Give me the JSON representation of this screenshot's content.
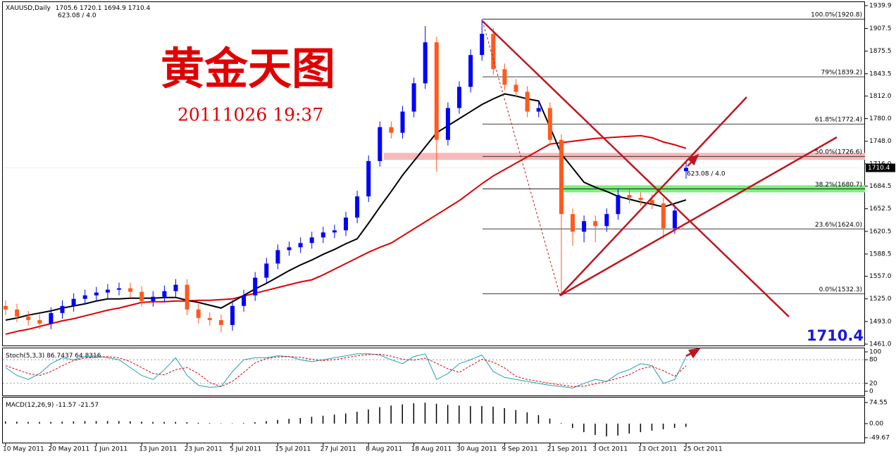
{
  "chart_data": [
    {
      "type": "candlestick",
      "title": "XAUUSD,Daily",
      "annotation": "623.08 / 4.0",
      "overlay_title": "黄金天图",
      "overlay_subtitle": "20111026 19:37",
      "up_color": "#0000ff",
      "down_color": "#ff5a1f",
      "categories": [
        "10 May 2011",
        null,
        null,
        null,
        "20 May 2011",
        null,
        null,
        null,
        "1 Jun 2011",
        null,
        null,
        null,
        "13 Jun 2011",
        null,
        null,
        null,
        "23 Jun 2011",
        null,
        null,
        null,
        "5 Jul 2011",
        null,
        null,
        null,
        "15 Jul 2011",
        null,
        null,
        null,
        "27 Jul 2011",
        null,
        null,
        null,
        "8 Aug 2011",
        null,
        null,
        null,
        "18 Aug 2011",
        null,
        null,
        null,
        "30 Aug 2011",
        null,
        null,
        null,
        "9 Sep 2011",
        null,
        null,
        null,
        "21 Sep 2011",
        null,
        null,
        null,
        "3 Oct 2011",
        null,
        null,
        null,
        "13 Oct 2011",
        null,
        null,
        null,
        "25 Oct 2011"
      ],
      "open": [
        1515,
        1510,
        1500,
        1495,
        1490,
        1505,
        1515,
        1525,
        1530,
        1534,
        1538,
        1540,
        1535,
        1522,
        1528,
        1536,
        1545,
        1510,
        1498,
        1495,
        1488,
        1515,
        1530,
        1555,
        1575,
        1594,
        1598,
        1604,
        1612,
        1619,
        1622,
        1640,
        1670,
        1720,
        1768,
        1760,
        1790,
        1830,
        1888,
        1750,
        1795,
        1825,
        1870,
        1900,
        1850,
        1828,
        1818,
        1790,
        1795,
        1750,
        1645,
        1620,
        1635,
        1628,
        1645,
        1672,
        1668,
        1665,
        1660,
        1625,
        1705.6
      ],
      "high": [
        1523,
        1518,
        1508,
        1503,
        1513,
        1523,
        1533,
        1538,
        1542,
        1546,
        1548,
        1548,
        1543,
        1536,
        1544,
        1553,
        1553,
        1518,
        1506,
        1503,
        1523,
        1538,
        1563,
        1583,
        1602,
        1606,
        1612,
        1620,
        1627,
        1630,
        1648,
        1678,
        1728,
        1776,
        1776,
        1798,
        1838,
        1911,
        1896,
        1803,
        1833,
        1878,
        1920.8,
        1908,
        1858,
        1836,
        1826,
        1803,
        1803,
        1758,
        1653,
        1643,
        1643,
        1653,
        1680,
        1680,
        1676,
        1673,
        1668,
        1658,
        1720.1
      ],
      "low": [
        1502,
        1492,
        1487,
        1482,
        1482,
        1497,
        1507,
        1517,
        1522,
        1526,
        1530,
        1527,
        1514,
        1514,
        1520,
        1528,
        1502,
        1490,
        1487,
        1478,
        1480,
        1507,
        1522,
        1547,
        1567,
        1586,
        1590,
        1596,
        1604,
        1611,
        1614,
        1632,
        1662,
        1712,
        1752,
        1752,
        1782,
        1822,
        1705,
        1742,
        1787,
        1817,
        1862,
        1842,
        1820,
        1810,
        1782,
        1782,
        1742,
        1532,
        1600,
        1605,
        1605,
        1620,
        1637,
        1660,
        1657,
        1652,
        1610,
        1617,
        1694.9
      ],
      "close": [
        1510,
        1500,
        1495,
        1490,
        1505,
        1515,
        1525,
        1530,
        1534,
        1538,
        1540,
        1535,
        1522,
        1528,
        1536,
        1545,
        1510,
        1498,
        1495,
        1488,
        1515,
        1530,
        1555,
        1575,
        1594,
        1598,
        1604,
        1612,
        1619,
        1622,
        1640,
        1670,
        1720,
        1768,
        1760,
        1790,
        1830,
        1888,
        1750,
        1795,
        1825,
        1870,
        1900,
        1850,
        1828,
        1818,
        1790,
        1795,
        1750,
        1645,
        1620,
        1635,
        1628,
        1645,
        1672,
        1668,
        1665,
        1660,
        1625,
        1650,
        1710.4
      ],
      "moving_averages": [
        {
          "color": "#e00000",
          "values": [
            1475,
            1479,
            1482,
            1486,
            1490,
            1494,
            1497,
            1501,
            1505,
            1509,
            1512,
            1516,
            1520,
            1521,
            1521,
            1522,
            1522,
            1523,
            1523,
            1524,
            1525,
            1529,
            1533,
            1537,
            1541,
            1545,
            1549,
            1552,
            1559,
            1567,
            1575,
            1583,
            1591,
            1598,
            1604,
            1614,
            1624,
            1634,
            1644,
            1654,
            1664,
            1676,
            1688,
            1699,
            1708,
            1717,
            1726,
            1735,
            1744,
            1746,
            1748,
            1750,
            1752,
            1753,
            1754,
            1755,
            1756,
            1753,
            1747,
            1743,
            1738
          ]
        },
        {
          "color": "#000000",
          "values": [
            1495,
            1498,
            1502,
            1505,
            1508,
            1512,
            1515,
            1518,
            1522,
            1525,
            1525,
            1526,
            1526,
            1526,
            1527,
            1527,
            1523,
            1520,
            1516,
            1512,
            1521,
            1530,
            1539,
            1547,
            1556,
            1565,
            1573,
            1580,
            1588,
            1595,
            1603,
            1610,
            1632,
            1655,
            1677,
            1700,
            1720,
            1740,
            1760,
            1770,
            1780,
            1790,
            1800,
            1808,
            1815,
            1812,
            1808,
            1805,
            1768,
            1730,
            1710,
            1690,
            1683,
            1677,
            1670,
            1666,
            1662,
            1659,
            1655,
            1660,
            1665
          ]
        }
      ],
      "fib_levels": [
        {
          "label": "100.0%(1920.8)",
          "value": 1920.8
        },
        {
          "label": "79%(1839.2)",
          "value": 1839.2
        },
        {
          "label": "61.8%(1772.4)",
          "value": 1772.4
        },
        {
          "label": "50.0%(1726.6)",
          "value": 1726.6,
          "band": "#f7b9b9"
        },
        {
          "label": "38.2%(1680.7)",
          "value": 1680.7,
          "band": "#7cf07c"
        },
        {
          "label": "23.6%(1624.0)",
          "value": 1624.0
        },
        {
          "label": "0.0%(1532.3)",
          "value": 1532.3
        }
      ],
      "ylim": [
        1461,
        1939.9
      ],
      "yticks": [
        1939.9,
        1907.5,
        1875.5,
        1843.5,
        {
          "value": 1812,
          "label": "1812.0"
        },
        {
          "value": 1780,
          "label": "1780.0"
        },
        {
          "value": 1748,
          "label": "1748.0"
        },
        {
          "value": 1716,
          "label": "1716.0"
        },
        1684.5,
        1652.5,
        1620.5,
        1588.5,
        {
          "value": 1557,
          "label": "1557.0"
        },
        {
          "value": 1525,
          "label": "1525.0"
        },
        {
          "value": 1493,
          "label": "1493.0"
        },
        {
          "value": 1461,
          "label": "1461.0"
        }
      ]
    },
    {
      "type": "line",
      "title": "Stoch(5,3,3)",
      "ylim": [
        0,
        100
      ],
      "yticks": [
        100,
        80,
        20,
        0
      ],
      "series": [
        {
          "color": "#1fa0b4",
          "values": [
            60,
            40,
            30,
            45,
            70,
            85,
            80,
            88,
            90,
            85,
            80,
            60,
            40,
            30,
            55,
            85,
            40,
            15,
            10,
            12,
            50,
            80,
            85,
            85,
            90,
            88,
            80,
            75,
            80,
            85,
            90,
            95,
            95,
            92,
            80,
            70,
            88,
            95,
            30,
            45,
            70,
            80,
            92,
            50,
            35,
            30,
            25,
            20,
            15,
            12,
            8,
            20,
            30,
            25,
            45,
            55,
            70,
            65,
            20,
            30,
            86.7437
          ]
        },
        {
          "color": "#e00000",
          "dashed": true,
          "values": [
            65,
            55,
            45,
            40,
            50,
            65,
            78,
            84,
            86,
            88,
            85,
            75,
            60,
            45,
            42,
            55,
            60,
            45,
            22,
            12,
            25,
            48,
            72,
            83,
            87,
            88,
            86,
            81,
            78,
            80,
            85,
            90,
            93,
            94,
            89,
            81,
            79,
            84,
            71,
            57,
            48,
            65,
            81,
            74,
            59,
            38,
            30,
            25,
            20,
            16,
            12,
            13,
            19,
            25,
            33,
            42,
            57,
            63,
            52,
            38,
            64.8316
          ]
        }
      ]
    },
    {
      "type": "bar",
      "title": "MACD(12,26,9)",
      "signal_value": -21.57,
      "color": "#000000",
      "ylim": [
        -49.67,
        74.55
      ],
      "yticks": [
        74.55,
        {
          "value": 0,
          "label": "0.00"
        },
        -49.67
      ],
      "values": [
        8,
        7,
        6,
        6,
        6,
        7,
        8,
        9,
        9,
        9,
        9,
        8,
        7,
        6,
        6,
        6,
        5,
        3,
        2,
        1,
        1,
        2,
        5,
        9,
        13,
        17,
        20,
        24,
        28,
        32,
        36,
        42,
        50,
        58,
        64,
        68,
        72,
        74,
        70,
        66,
        64,
        62,
        62,
        60,
        55,
        48,
        40,
        30,
        18,
        2,
        -15,
        -30,
        -40,
        -45,
        -42,
        -35,
        -30,
        -25,
        -20,
        -15,
        -11.57
      ]
    }
  ]
}
